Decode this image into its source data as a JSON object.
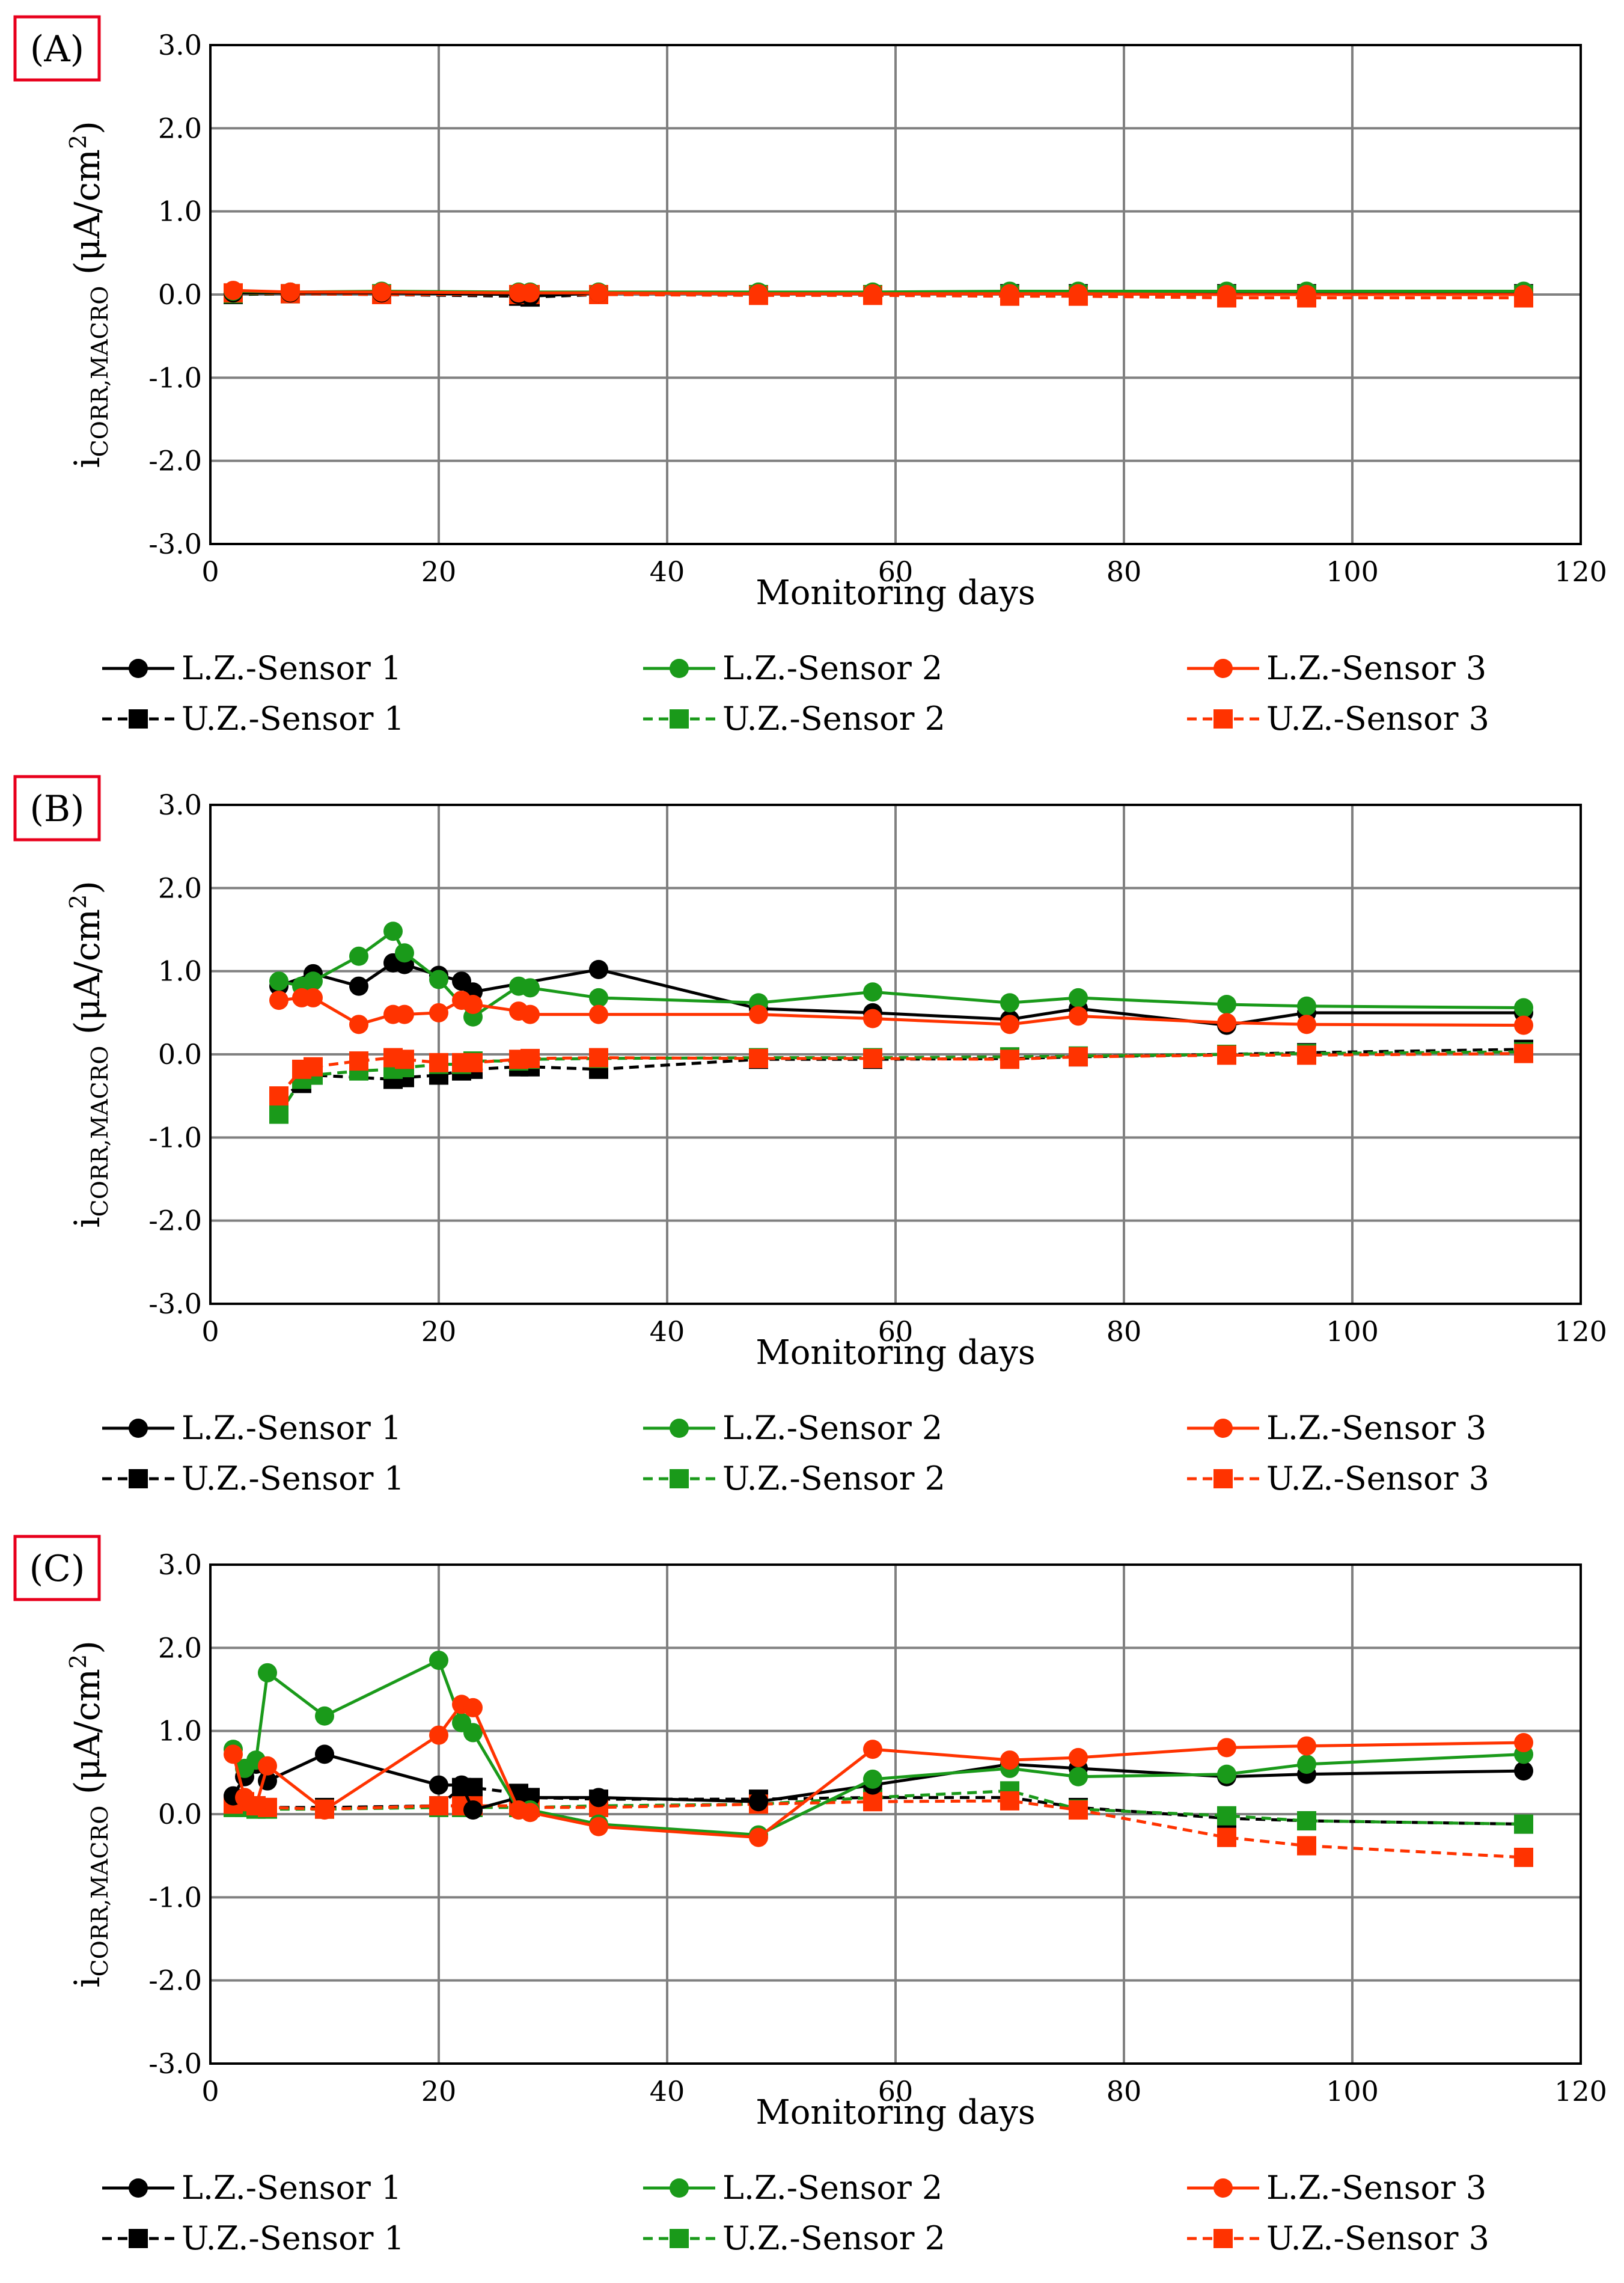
{
  "colors": {
    "sensor1": "#000000",
    "sensor2": "#1a9a1a",
    "sensor3": "#ff3300",
    "grid": "#808080",
    "tag_border": "#e8001c"
  },
  "legend": [
    {
      "label": "L.Z.-Sensor 1",
      "color_key": "sensor1",
      "marker": "circle",
      "dash": false
    },
    {
      "label": "L.Z.-Sensor 2",
      "color_key": "sensor2",
      "marker": "circle",
      "dash": false
    },
    {
      "label": "L.Z.-Sensor 3",
      "color_key": "sensor3",
      "marker": "circle",
      "dash": false
    },
    {
      "label": "U.Z.-Sensor 1",
      "color_key": "sensor1",
      "marker": "square",
      "dash": true
    },
    {
      "label": "U.Z.-Sensor 2",
      "color_key": "sensor2",
      "marker": "square",
      "dash": true
    },
    {
      "label": "U.Z.-Sensor 3",
      "color_key": "sensor3",
      "marker": "square",
      "dash": true
    }
  ],
  "chart_data": [
    {
      "panel": "(A)",
      "type": "line",
      "xlabel": "Monitoring days",
      "ylabel_main": "i",
      "ylabel_sub": "CORR,MACRO",
      "ylabel_unit": " (μA/cm",
      "ylabel_sup": "2",
      "ylabel_close": ")",
      "xlim": [
        0,
        120
      ],
      "ylim": [
        -3.0,
        3.0
      ],
      "xticks": [
        "0",
        "20",
        "40",
        "60",
        "80",
        "100",
        "120"
      ],
      "yticks": [
        "3.0",
        "2.0",
        "1.0",
        "0.0",
        "-1.0",
        "-2.0",
        "-3.0"
      ],
      "grid": true,
      "series": [
        {
          "name": "L.Z.-Sensor 1",
          "x": [
            2,
            7,
            15,
            27,
            28,
            34,
            48,
            58,
            70,
            76,
            89,
            96,
            115
          ],
          "y": [
            0.02,
            0.02,
            0.02,
            0.0,
            -0.02,
            0.02,
            0.02,
            0.02,
            0.02,
            0.02,
            0.02,
            0.02,
            0.02
          ]
        },
        {
          "name": "L.Z.-Sensor 2",
          "x": [
            2,
            7,
            15,
            27,
            28,
            34,
            48,
            58,
            70,
            76,
            89,
            96,
            115
          ],
          "y": [
            0.04,
            0.03,
            0.04,
            0.03,
            0.03,
            0.03,
            0.03,
            0.03,
            0.04,
            0.04,
            0.04,
            0.04,
            0.04
          ]
        },
        {
          "name": "L.Z.-Sensor 3",
          "x": [
            2,
            7,
            15,
            27,
            28,
            34,
            48,
            58,
            70,
            76,
            89,
            96,
            115
          ],
          "y": [
            0.05,
            0.03,
            0.03,
            0.02,
            0.02,
            0.02,
            0.01,
            0.01,
            0.01,
            0.01,
            0.0,
            0.0,
            0.0
          ]
        },
        {
          "name": "U.Z.-Sensor 1",
          "x": [
            2,
            7,
            15,
            27,
            28,
            34,
            48,
            58,
            70,
            76,
            89,
            96,
            115
          ],
          "y": [
            0.0,
            0.01,
            0.0,
            -0.02,
            -0.03,
            0.0,
            0.0,
            0.0,
            0.01,
            0.01,
            0.01,
            0.01,
            0.01
          ]
        },
        {
          "name": "U.Z.-Sensor 2",
          "x": [
            2,
            7,
            15,
            27,
            28,
            34,
            48,
            58,
            70,
            76,
            89,
            96,
            115
          ],
          "y": [
            0.01,
            0.01,
            0.01,
            0.0,
            0.0,
            0.0,
            0.0,
            0.0,
            0.0,
            0.0,
            0.0,
            0.0,
            0.0
          ]
        },
        {
          "name": "U.Z.-Sensor 3",
          "x": [
            2,
            7,
            15,
            27,
            28,
            34,
            48,
            58,
            70,
            76,
            89,
            96,
            115
          ],
          "y": [
            0.02,
            0.01,
            0.0,
            0.0,
            0.0,
            0.0,
            -0.01,
            -0.01,
            -0.02,
            -0.02,
            -0.04,
            -0.04,
            -0.04
          ]
        }
      ]
    },
    {
      "panel": "(B)",
      "type": "line",
      "xlabel": "Monitoring days",
      "ylabel_main": "i",
      "ylabel_sub": "CORR,MACRO",
      "ylabel_unit": " (μA/cm",
      "ylabel_sup": "2",
      "ylabel_close": ")",
      "xlim": [
        0,
        120
      ],
      "ylim": [
        -3.0,
        3.0
      ],
      "xticks": [
        "0",
        "20",
        "40",
        "60",
        "80",
        "100",
        "120"
      ],
      "yticks": [
        "3.0",
        "2.0",
        "1.0",
        "0.0",
        "-1.0",
        "-2.0",
        "-3.0"
      ],
      "grid": true,
      "series": [
        {
          "name": "L.Z.-Sensor 1",
          "x": [
            6,
            9,
            13,
            16,
            17,
            20,
            22,
            23,
            34,
            48,
            58,
            70,
            76,
            89,
            96,
            115
          ],
          "y": [
            0.82,
            0.97,
            0.82,
            1.1,
            1.08,
            0.95,
            0.88,
            0.75,
            1.02,
            0.55,
            0.5,
            0.42,
            0.55,
            0.35,
            0.5,
            0.5
          ]
        },
        {
          "name": "L.Z.-Sensor 2",
          "x": [
            6,
            8,
            9,
            13,
            16,
            17,
            20,
            23,
            27,
            28,
            34,
            48,
            58,
            70,
            76,
            89,
            96,
            115
          ],
          "y": [
            0.88,
            0.82,
            0.88,
            1.18,
            1.48,
            1.22,
            0.9,
            0.45,
            0.82,
            0.8,
            0.68,
            0.62,
            0.75,
            0.62,
            0.68,
            0.6,
            0.58,
            0.56
          ]
        },
        {
          "name": "L.Z.-Sensor 3",
          "x": [
            6,
            8,
            9,
            13,
            16,
            17,
            20,
            22,
            23,
            27,
            28,
            34,
            48,
            58,
            70,
            76,
            89,
            96,
            115
          ],
          "y": [
            0.65,
            0.68,
            0.68,
            0.36,
            0.48,
            0.48,
            0.5,
            0.65,
            0.6,
            0.52,
            0.48,
            0.48,
            0.48,
            0.43,
            0.36,
            0.46,
            0.38,
            0.36,
            0.35
          ]
        },
        {
          "name": "U.Z.-Sensor 1",
          "x": [
            6,
            8,
            9,
            16,
            17,
            20,
            22,
            23,
            27,
            28,
            34,
            48,
            58,
            70,
            76,
            89,
            96,
            115
          ],
          "y": [
            -0.55,
            -0.35,
            -0.25,
            -0.3,
            -0.28,
            -0.25,
            -0.2,
            -0.18,
            -0.15,
            -0.15,
            -0.18,
            -0.06,
            -0.06,
            -0.05,
            -0.03,
            0.0,
            0.02,
            0.06
          ]
        },
        {
          "name": "U.Z.-Sensor 2",
          "x": [
            6,
            8,
            9,
            13,
            16,
            17,
            20,
            22,
            23,
            27,
            28,
            34,
            48,
            58,
            70,
            76,
            89,
            96,
            115
          ],
          "y": [
            -0.72,
            -0.3,
            -0.25,
            -0.2,
            -0.18,
            -0.16,
            -0.12,
            -0.12,
            -0.08,
            -0.08,
            -0.06,
            -0.05,
            -0.04,
            -0.04,
            -0.03,
            -0.02,
            0.0,
            0.01,
            0.03
          ]
        },
        {
          "name": "U.Z.-Sensor 3",
          "x": [
            6,
            8,
            9,
            13,
            16,
            17,
            20,
            22,
            23,
            27,
            28,
            34,
            48,
            58,
            70,
            76,
            89,
            96,
            115
          ],
          "y": [
            -0.5,
            -0.18,
            -0.15,
            -0.08,
            -0.04,
            -0.06,
            -0.1,
            -0.1,
            -0.1,
            -0.06,
            -0.05,
            -0.04,
            -0.05,
            -0.05,
            -0.06,
            -0.03,
            -0.01,
            -0.01,
            0.01
          ]
        }
      ]
    },
    {
      "panel": "(C)",
      "type": "line",
      "xlabel": "Monitoring days",
      "ylabel_main": "i",
      "ylabel_sub": "CORR,MACRO",
      "ylabel_unit": " (μA/cm",
      "ylabel_sup": "2",
      "ylabel_close": ")",
      "xlim": [
        0,
        120
      ],
      "ylim": [
        -3.0,
        3.0
      ],
      "xticks": [
        "0",
        "20",
        "40",
        "60",
        "80",
        "100",
        "120"
      ],
      "yticks": [
        "3.0",
        "2.0",
        "1.0",
        "0.0",
        "-1.0",
        "-2.0",
        "-3.0"
      ],
      "grid": true,
      "series": [
        {
          "name": "L.Z.-Sensor 1",
          "x": [
            2,
            3,
            4,
            5,
            10,
            20,
            22,
            23,
            27,
            28,
            34,
            48,
            58,
            70,
            76,
            89,
            96,
            115
          ],
          "y": [
            0.22,
            0.45,
            0.6,
            0.4,
            0.72,
            0.35,
            0.35,
            0.05,
            0.2,
            0.2,
            0.2,
            0.15,
            0.35,
            0.6,
            0.55,
            0.45,
            0.48,
            0.52
          ]
        },
        {
          "name": "L.Z.-Sensor 2",
          "x": [
            2,
            3,
            4,
            5,
            10,
            20,
            22,
            23,
            27,
            28,
            34,
            48,
            58,
            70,
            76,
            89,
            96,
            115
          ],
          "y": [
            0.78,
            0.55,
            0.65,
            1.7,
            1.18,
            1.85,
            1.1,
            0.98,
            0.05,
            0.05,
            -0.12,
            -0.25,
            0.42,
            0.55,
            0.45,
            0.48,
            0.6,
            0.72
          ]
        },
        {
          "name": "L.Z.-Sensor 3",
          "x": [
            2,
            3,
            4,
            5,
            10,
            20,
            22,
            23,
            27,
            28,
            34,
            48,
            58,
            70,
            76,
            89,
            96,
            115
          ],
          "y": [
            0.72,
            0.2,
            0.1,
            0.58,
            0.05,
            0.95,
            1.32,
            1.28,
            0.05,
            0.02,
            -0.15,
            -0.28,
            0.78,
            0.65,
            0.68,
            0.8,
            0.82,
            0.86
          ]
        },
        {
          "name": "U.Z.-Sensor 1",
          "x": [
            2,
            3,
            4,
            5,
            10,
            20,
            22,
            23,
            27,
            28,
            34,
            48,
            58,
            70,
            76,
            89,
            96,
            115
          ],
          "y": [
            0.12,
            0.12,
            0.1,
            0.08,
            0.08,
            0.1,
            0.32,
            0.32,
            0.25,
            0.2,
            0.18,
            0.18,
            0.2,
            0.2,
            0.08,
            -0.05,
            -0.08,
            -0.12
          ]
        },
        {
          "name": "U.Z.-Sensor 2",
          "x": [
            2,
            3,
            4,
            5,
            10,
            20,
            22,
            23,
            27,
            28,
            34,
            48,
            58,
            70,
            76,
            89,
            96,
            115
          ],
          "y": [
            0.08,
            0.08,
            0.06,
            0.06,
            0.06,
            0.08,
            0.08,
            0.08,
            0.08,
            0.08,
            0.1,
            0.12,
            0.2,
            0.28,
            0.06,
            -0.02,
            -0.08,
            -0.12
          ]
        },
        {
          "name": "U.Z.-Sensor 3",
          "x": [
            2,
            3,
            4,
            5,
            10,
            20,
            22,
            23,
            27,
            28,
            34,
            48,
            58,
            70,
            76,
            89,
            96,
            115
          ],
          "y": [
            0.12,
            0.15,
            0.1,
            0.08,
            0.06,
            0.1,
            0.1,
            0.1,
            0.1,
            0.08,
            0.08,
            0.12,
            0.15,
            0.16,
            0.05,
            -0.28,
            -0.38,
            -0.52
          ]
        }
      ]
    }
  ]
}
